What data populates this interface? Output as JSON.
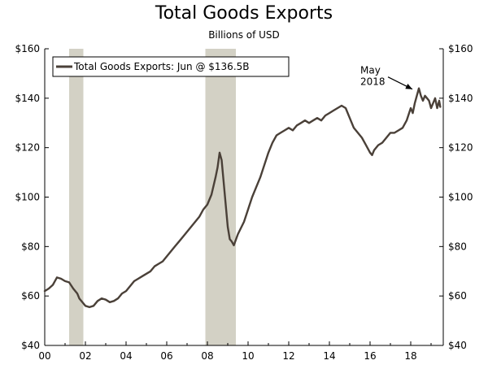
{
  "chart_data": {
    "type": "line",
    "title": "Total Goods Exports",
    "subtitle": "Billions of USD",
    "xlabel": "",
    "ylabel": "",
    "xlim": [
      2000,
      2019.6
    ],
    "ylim": [
      40,
      160
    ],
    "y_ticks": [
      40,
      60,
      80,
      100,
      120,
      140,
      160
    ],
    "y_tick_labels": [
      "$40",
      "$60",
      "$80",
      "$100",
      "$120",
      "$140",
      "$160"
    ],
    "x_ticks": [
      2000,
      2002,
      2004,
      2006,
      2008,
      2010,
      2012,
      2014,
      2016,
      2018
    ],
    "x_tick_labels": [
      "00",
      "02",
      "04",
      "06",
      "08",
      "10",
      "12",
      "14",
      "16",
      "18"
    ],
    "legend": {
      "label": "Total Goods Exports: Jun @ $136.5B",
      "placement": "top-left"
    },
    "recessions": [
      {
        "start": 2001.2,
        "end": 2001.9
      },
      {
        "start": 2007.9,
        "end": 2009.4
      }
    ],
    "annotation": {
      "line1": "May",
      "line2": "2018",
      "x": 2018.4,
      "y": 144
    },
    "colors": {
      "line": "#4a4038",
      "recession": "#d3d1c5",
      "axis": "#000000"
    },
    "series": [
      {
        "name": "Total Goods Exports",
        "points": [
          [
            2000.0,
            62.0
          ],
          [
            2000.2,
            63.0
          ],
          [
            2000.4,
            64.5
          ],
          [
            2000.5,
            66.0
          ],
          [
            2000.6,
            67.5
          ],
          [
            2000.8,
            67.0
          ],
          [
            2001.0,
            66.0
          ],
          [
            2001.2,
            65.5
          ],
          [
            2001.4,
            63.0
          ],
          [
            2001.6,
            61.0
          ],
          [
            2001.7,
            59.0
          ],
          [
            2001.9,
            57.0
          ],
          [
            2002.0,
            56.0
          ],
          [
            2002.2,
            55.5
          ],
          [
            2002.4,
            56.0
          ],
          [
            2002.6,
            58.0
          ],
          [
            2002.8,
            59.0
          ],
          [
            2003.0,
            58.5
          ],
          [
            2003.2,
            57.5
          ],
          [
            2003.4,
            58.0
          ],
          [
            2003.6,
            59.0
          ],
          [
            2003.8,
            61.0
          ],
          [
            2004.0,
            62.0
          ],
          [
            2004.2,
            64.0
          ],
          [
            2004.4,
            66.0
          ],
          [
            2004.6,
            67.0
          ],
          [
            2004.8,
            68.0
          ],
          [
            2005.0,
            69.0
          ],
          [
            2005.2,
            70.0
          ],
          [
            2005.4,
            72.0
          ],
          [
            2005.6,
            73.0
          ],
          [
            2005.8,
            74.0
          ],
          [
            2006.0,
            76.0
          ],
          [
            2006.2,
            78.0
          ],
          [
            2006.4,
            80.0
          ],
          [
            2006.6,
            82.0
          ],
          [
            2006.8,
            84.0
          ],
          [
            2007.0,
            86.0
          ],
          [
            2007.2,
            88.0
          ],
          [
            2007.4,
            90.0
          ],
          [
            2007.6,
            92.0
          ],
          [
            2007.8,
            95.0
          ],
          [
            2008.0,
            97.0
          ],
          [
            2008.1,
            99.0
          ],
          [
            2008.2,
            101.0
          ],
          [
            2008.4,
            108.0
          ],
          [
            2008.5,
            112.0
          ],
          [
            2008.6,
            118.0
          ],
          [
            2008.7,
            115.0
          ],
          [
            2008.8,
            106.0
          ],
          [
            2008.9,
            97.0
          ],
          [
            2009.0,
            88.0
          ],
          [
            2009.1,
            83.0
          ],
          [
            2009.2,
            82.0
          ],
          [
            2009.3,
            80.5
          ],
          [
            2009.5,
            85.0
          ],
          [
            2009.8,
            90.0
          ],
          [
            2010.0,
            95.0
          ],
          [
            2010.2,
            100.0
          ],
          [
            2010.4,
            104.0
          ],
          [
            2010.6,
            108.0
          ],
          [
            2010.8,
            113.0
          ],
          [
            2011.0,
            118.0
          ],
          [
            2011.2,
            122.0
          ],
          [
            2011.4,
            125.0
          ],
          [
            2011.6,
            126.0
          ],
          [
            2011.8,
            127.0
          ],
          [
            2012.0,
            128.0
          ],
          [
            2012.2,
            127.0
          ],
          [
            2012.4,
            129.0
          ],
          [
            2012.6,
            130.0
          ],
          [
            2012.8,
            131.0
          ],
          [
            2013.0,
            130.0
          ],
          [
            2013.2,
            131.0
          ],
          [
            2013.4,
            132.0
          ],
          [
            2013.6,
            131.0
          ],
          [
            2013.8,
            133.0
          ],
          [
            2014.0,
            134.0
          ],
          [
            2014.2,
            135.0
          ],
          [
            2014.4,
            136.0
          ],
          [
            2014.6,
            137.0
          ],
          [
            2014.8,
            136.0
          ],
          [
            2015.0,
            132.0
          ],
          [
            2015.2,
            128.0
          ],
          [
            2015.4,
            126.0
          ],
          [
            2015.6,
            124.0
          ],
          [
            2015.8,
            121.0
          ],
          [
            2016.0,
            118.0
          ],
          [
            2016.1,
            117.0
          ],
          [
            2016.2,
            119.0
          ],
          [
            2016.4,
            121.0
          ],
          [
            2016.6,
            122.0
          ],
          [
            2016.8,
            124.0
          ],
          [
            2017.0,
            126.0
          ],
          [
            2017.2,
            126.0
          ],
          [
            2017.4,
            127.0
          ],
          [
            2017.6,
            128.0
          ],
          [
            2017.8,
            131.0
          ],
          [
            2018.0,
            136.0
          ],
          [
            2018.1,
            134.0
          ],
          [
            2018.2,
            138.0
          ],
          [
            2018.3,
            141.0
          ],
          [
            2018.4,
            144.0
          ],
          [
            2018.5,
            141.0
          ],
          [
            2018.6,
            139.0
          ],
          [
            2018.7,
            141.0
          ],
          [
            2018.8,
            140.0
          ],
          [
            2018.9,
            139.0
          ],
          [
            2019.0,
            136.0
          ],
          [
            2019.1,
            138.0
          ],
          [
            2019.2,
            140.0
          ],
          [
            2019.3,
            136.0
          ],
          [
            2019.4,
            139.0
          ],
          [
            2019.45,
            136.5
          ]
        ]
      }
    ]
  }
}
